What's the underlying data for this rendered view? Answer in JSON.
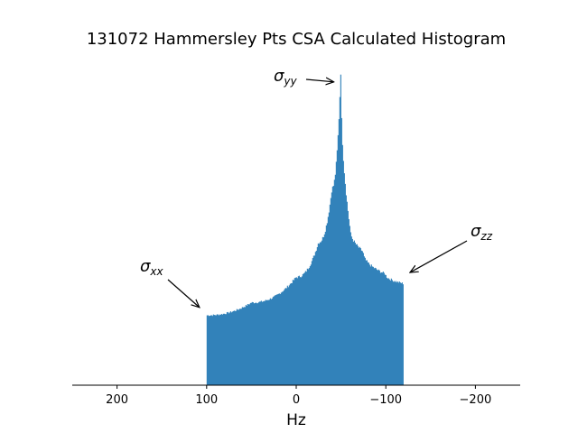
{
  "chart_data": {
    "type": "bar",
    "title": "131072 Hammersley Pts CSA Calculated Histogram",
    "xlabel": "Hz",
    "ylabel": "",
    "x_reversed": true,
    "xlim": [
      250,
      -250
    ],
    "xticks": [
      200,
      100,
      0,
      -100,
      -200
    ],
    "xtick_labels": [
      "200",
      "100",
      "0",
      "−100",
      "−200"
    ],
    "y_axis_visible": false,
    "grid": false,
    "bar_color": "#1f77b4",
    "histogram": {
      "range_hz": [
        100,
        -120
      ],
      "peak_hz": -50,
      "relative_heights": {
        "at_100": 0.22,
        "at_50": 0.26,
        "at_0": 0.34,
        "at_-25": 0.45,
        "at_-40": 0.62,
        "at_-50": 1.0,
        "at_-60": 0.5,
        "at_-75": 0.42,
        "at_-100": 0.35,
        "at_-120": 0.32
      }
    },
    "annotations": [
      {
        "base": "σ",
        "sub": "xx",
        "arrow_to_x": 108,
        "arrow_to_y_rel": 0.245
      },
      {
        "base": "σ",
        "sub": "yy",
        "arrow_to_x": -42,
        "arrow_to_y_rel": 0.955
      },
      {
        "base": "σ",
        "sub": "zz",
        "arrow_to_x": -127,
        "arrow_to_y_rel": 0.355
      }
    ]
  }
}
